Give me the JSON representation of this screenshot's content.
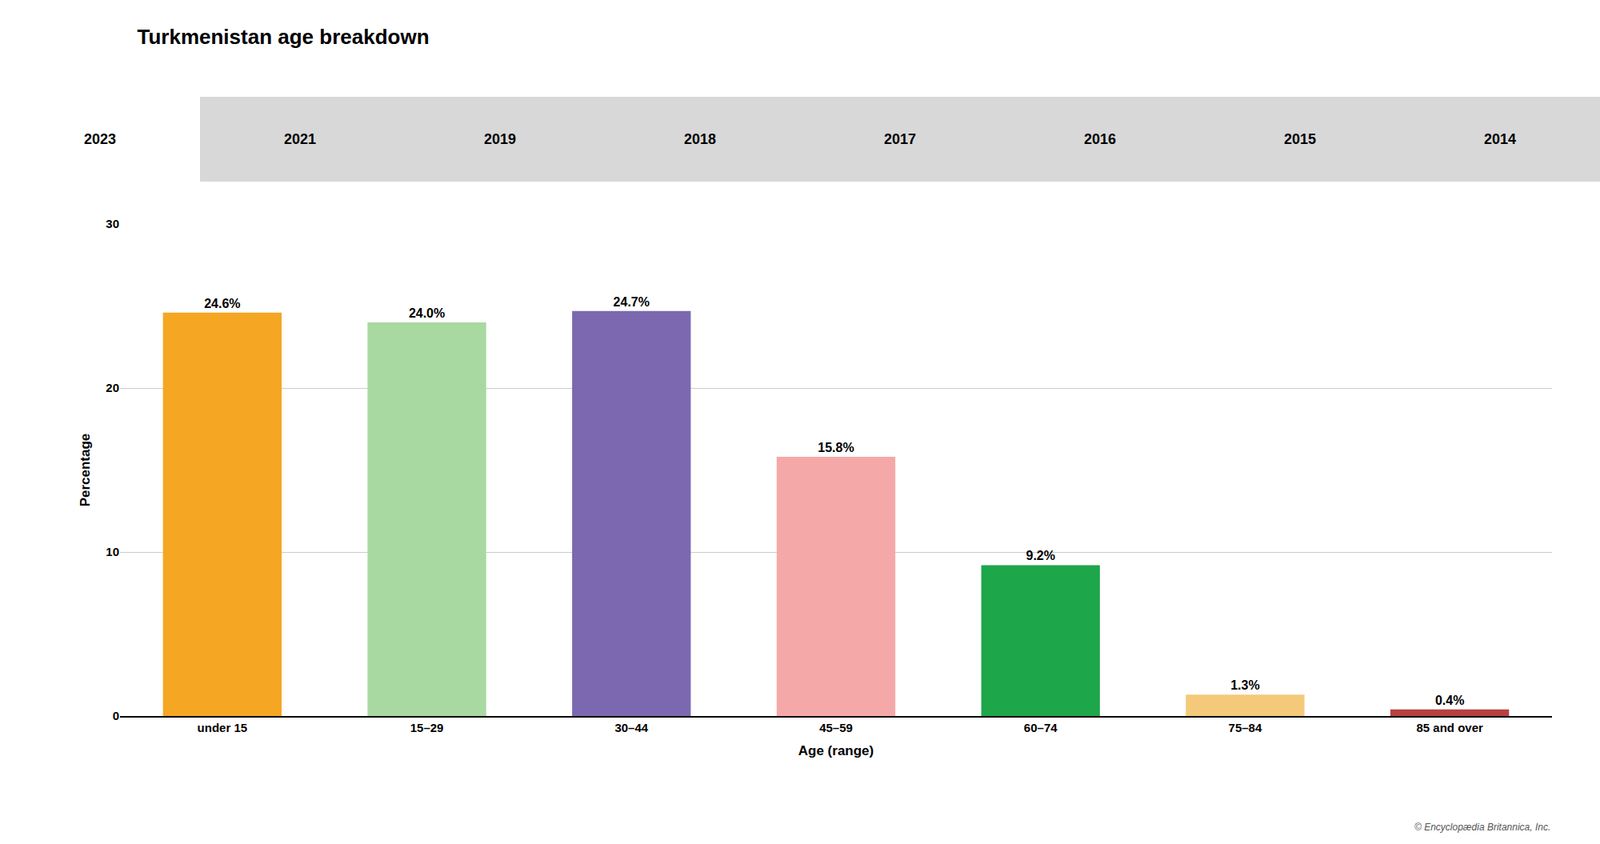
{
  "chart_data": {
    "type": "bar",
    "title": "Turkmenistan age breakdown",
    "annotations": [
      "2023",
      "2021",
      "2019",
      "2018",
      "2017",
      "2016",
      "2015",
      "2014",
      "© Encyclopædia Britannica, Inc."
    ],
    "categories": [
      "under 15",
      "15–29",
      "30–44",
      "45–59",
      "60–74",
      "75–84",
      "85 and over"
    ],
    "values": [
      24.6,
      24.0,
      24.7,
      15.8,
      9.2,
      1.3,
      0.4
    ],
    "value_labels": [
      "24.6%",
      "24.0%",
      "24.7%",
      "15.8%",
      "9.2%",
      "1.3%",
      "0.4%"
    ],
    "data_labels": true,
    "colors": [
      "#F5A623",
      "#A8D9A0",
      "#7B68B0",
      "#F4A9A8",
      "#1DA64A",
      "#F5C97A",
      "#B94040"
    ],
    "xlabel": "Age (range)",
    "ylabel": "Percentage",
    "ylim": [
      0,
      30
    ],
    "yticks": [
      0,
      10,
      20,
      30
    ],
    "grid": true
  }
}
